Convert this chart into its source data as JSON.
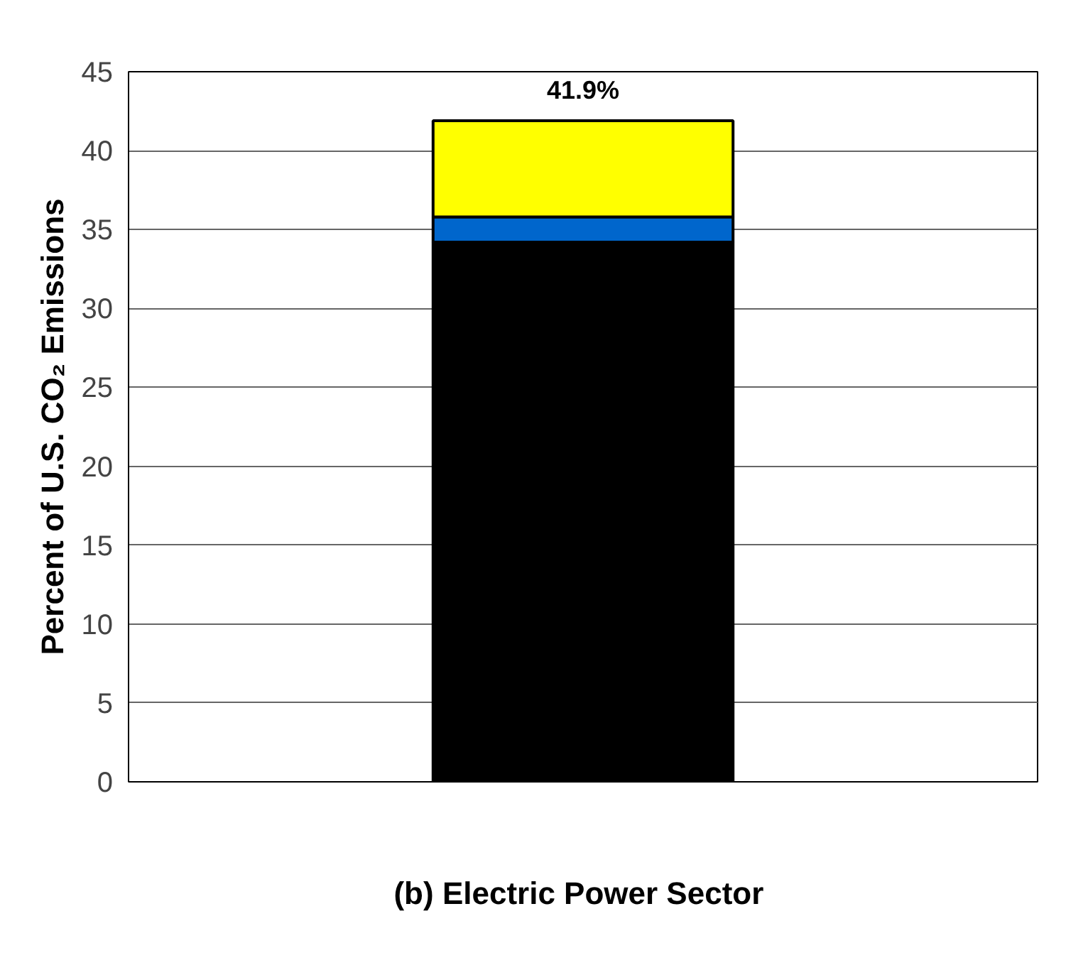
{
  "chart_data": {
    "type": "bar",
    "stacked": true,
    "categories": [
      null
    ],
    "series": [
      {
        "color": "#000000",
        "values": [
          34.2
        ]
      },
      {
        "color": "#0066cc",
        "values": [
          1.6
        ]
      },
      {
        "color": "#ffff00",
        "values": [
          6.1
        ]
      }
    ],
    "totals": [
      "41.9%"
    ],
    "ylim": [
      0,
      45
    ],
    "yticks": [
      0,
      5,
      10,
      15,
      20,
      25,
      30,
      35,
      40,
      45
    ],
    "grid": "y",
    "ylabel": "Percent of U.S. CO₂ Emissions",
    "xlabel": "(b)  Electric Power Sector"
  }
}
